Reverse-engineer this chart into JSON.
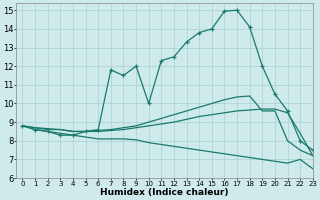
{
  "xlabel": "Humidex (Indice chaleur)",
  "xlim": [
    -0.5,
    23
  ],
  "ylim": [
    6,
    15.4
  ],
  "yticks": [
    6,
    7,
    8,
    9,
    10,
    11,
    12,
    13,
    14,
    15
  ],
  "xticks": [
    0,
    1,
    2,
    3,
    4,
    5,
    6,
    7,
    8,
    9,
    10,
    11,
    12,
    13,
    14,
    15,
    16,
    17,
    18,
    19,
    20,
    21,
    22,
    23
  ],
  "bg_color": "#ceeaea",
  "line_color": "#1a7a6e",
  "grid_color": "#aacfcf",
  "lines": [
    {
      "x": [
        0,
        1,
        2,
        3,
        4,
        5,
        6,
        7,
        8,
        9,
        10,
        11,
        12,
        13,
        14,
        15,
        16,
        17,
        18,
        19,
        20,
        21,
        22,
        23
      ],
      "y": [
        8.8,
        8.6,
        8.5,
        8.3,
        8.3,
        8.5,
        8.6,
        11.8,
        11.5,
        12.0,
        10.0,
        12.3,
        12.5,
        13.3,
        13.8,
        14.0,
        14.95,
        15.0,
        14.1,
        12.0,
        10.5,
        9.6,
        8.0,
        7.5
      ],
      "marker": true
    },
    {
      "x": [
        0,
        1,
        2,
        3,
        4,
        5,
        6,
        7,
        8,
        9,
        10,
        11,
        12,
        13,
        14,
        15,
        16,
        17,
        18,
        19,
        20,
        21,
        22,
        23
      ],
      "y": [
        8.8,
        8.7,
        8.6,
        8.6,
        8.5,
        8.5,
        8.55,
        8.6,
        8.7,
        8.8,
        9.0,
        9.2,
        9.4,
        9.6,
        9.8,
        10.0,
        10.2,
        10.35,
        10.4,
        9.6,
        9.6,
        8.0,
        7.5,
        7.2
      ],
      "marker": false
    },
    {
      "x": [
        0,
        1,
        2,
        3,
        4,
        5,
        6,
        7,
        8,
        9,
        10,
        11,
        12,
        13,
        14,
        15,
        16,
        17,
        18,
        19,
        20,
        21,
        22,
        23
      ],
      "y": [
        8.8,
        8.7,
        8.65,
        8.6,
        8.5,
        8.5,
        8.5,
        8.55,
        8.6,
        8.7,
        8.8,
        8.9,
        9.0,
        9.15,
        9.3,
        9.4,
        9.5,
        9.6,
        9.65,
        9.7,
        9.7,
        9.5,
        8.4,
        7.2
      ],
      "marker": false
    },
    {
      "x": [
        0,
        1,
        2,
        3,
        4,
        5,
        6,
        7,
        8,
        9,
        10,
        11,
        12,
        13,
        14,
        15,
        16,
        17,
        18,
        19,
        20,
        21,
        22,
        23
      ],
      "y": [
        8.8,
        8.6,
        8.5,
        8.4,
        8.3,
        8.2,
        8.1,
        8.1,
        8.1,
        8.05,
        7.9,
        7.8,
        7.7,
        7.6,
        7.5,
        7.4,
        7.3,
        7.2,
        7.1,
        7.0,
        6.9,
        6.8,
        7.0,
        6.5
      ],
      "marker": false
    }
  ]
}
